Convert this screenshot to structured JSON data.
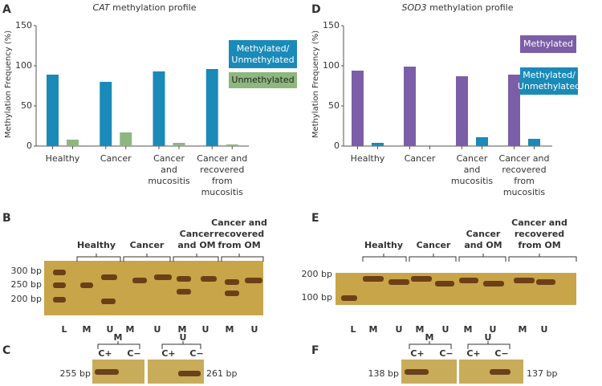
{
  "chart_data": [
    {
      "type": "bar",
      "panel": "A",
      "title": {
        "gene": "CAT",
        "text": "methylation profile"
      },
      "y_label": "Methylation Frequency (%)",
      "categories": [
        [
          "Healthy"
        ],
        [
          "Cancer"
        ],
        [
          "Cancer",
          "and",
          "mucositis"
        ],
        [
          "Cancer and",
          "recovered",
          "from",
          "mucositis"
        ]
      ],
      "series": [
        {
          "name": "Methylated/ Unmethylated",
          "color": "#1a8ab8",
          "values": [
            89,
            80,
            93,
            96
          ]
        },
        {
          "name": "Unmethylated",
          "color": "#8db77e",
          "values": [
            8,
            17,
            4,
            2
          ]
        }
      ],
      "ylim": [
        0,
        150
      ],
      "yticks": [
        0,
        50,
        100,
        150
      ],
      "grid": false
    },
    {
      "type": "bar",
      "panel": "D",
      "title": {
        "gene": "SOD3",
        "text": "methylation profile"
      },
      "y_label": "Methylation Frequency (%)",
      "categories": [
        [
          "Healthy"
        ],
        [
          "Cancer"
        ],
        [
          "Cancer",
          "and",
          "mucositis"
        ],
        [
          "Cancer and",
          "recovered",
          "from",
          "mucositis"
        ]
      ],
      "series": [
        {
          "name": "Methylated",
          "color": "#7b5ea7",
          "values": [
            94,
            99,
            87,
            89
          ]
        },
        {
          "name": "Methylated/ Unmethylated",
          "color": "#1a8ab8",
          "values": [
            4,
            0,
            11,
            9
          ]
        }
      ],
      "ylim": [
        0,
        150
      ],
      "yticks": [
        0,
        50,
        100,
        150
      ],
      "grid": false
    }
  ],
  "gels": [
    {
      "panel": "B",
      "size_labels": [
        "300 bp",
        "250 bp",
        "200 bp"
      ],
      "lanes": [
        "L",
        "M",
        "U",
        "M",
        "U",
        "M",
        "U",
        "M",
        "U"
      ],
      "groups": [
        [
          "Healthy"
        ],
        [
          "Cancer"
        ],
        [
          "Cancer",
          "and OM"
        ],
        [
          "Cancer and",
          "recovered",
          "from OM"
        ]
      ]
    },
    {
      "panel": "C",
      "size_labels": [
        "255 bp",
        "261 bp"
      ],
      "lanes": [
        "C+",
        "C−",
        "C+",
        "C−"
      ],
      "groups": [
        [
          "M"
        ],
        [
          "U"
        ]
      ]
    },
    {
      "panel": "E",
      "size_labels": [
        "200 bp",
        "100 bp"
      ],
      "lanes": [
        "L",
        "M",
        "U",
        "M",
        "U",
        "M",
        "U",
        "M",
        "U"
      ],
      "groups": [
        [
          "Healthy"
        ],
        [
          "Cancer"
        ],
        [
          "Cancer",
          "and OM"
        ],
        [
          "Cancer and",
          "recovered",
          "from OM"
        ]
      ]
    },
    {
      "panel": "F",
      "size_labels": [
        "138 bp",
        "137 bp"
      ],
      "lanes": [
        "C+",
        "C−",
        "C+",
        "C−"
      ],
      "groups": [
        [
          "M"
        ],
        [
          "U"
        ]
      ]
    }
  ]
}
